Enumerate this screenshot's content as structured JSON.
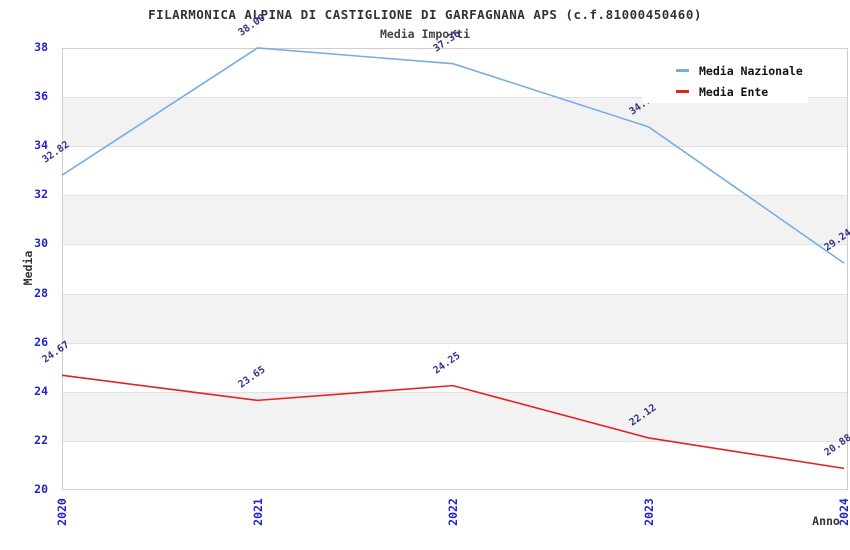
{
  "header": {
    "title": "FILARMONICA ALPINA DI CASTIGLIONE DI GARFAGNANA APS (c.f.81000450460)",
    "subtitle": "Media Importi"
  },
  "chart_data": {
    "type": "line",
    "title": "FILARMONICA ALPINA DI CASTIGLIONE DI GARFAGNANA APS (c.f.81000450460)",
    "subtitle": "Media Importi",
    "categories": [
      "2020",
      "2021",
      "2022",
      "2023",
      "2024"
    ],
    "series": [
      {
        "name": "Media Nazionale",
        "color": "#79ade2",
        "values": [
          32.82,
          38.0,
          37.36,
          34.79,
          29.24
        ]
      },
      {
        "name": "Media Ente",
        "color": "#e32222",
        "values": [
          24.67,
          23.65,
          24.25,
          22.12,
          20.88
        ]
      }
    ],
    "xlabel": "Anno",
    "ylabel": "Media",
    "ylim": [
      20,
      38
    ],
    "y_ticks": [
      20,
      22,
      24,
      26,
      28,
      30,
      32,
      34,
      36,
      38
    ],
    "grid": "horizontal-bands-alternating",
    "legend_position": "top-right",
    "colors": {
      "band_gray": "#f2f2f2",
      "grid_line": "#e2e2e2",
      "plot_border": "#cfcfcf",
      "axis_tick_text": "#2323cc",
      "point_label_text": "#333388",
      "title_text": "#333333"
    }
  }
}
